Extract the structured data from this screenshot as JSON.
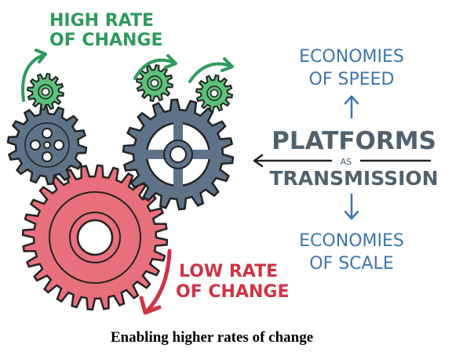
{
  "labels": {
    "high_rate_line1": "HIGH RATE",
    "high_rate_line2": "OF CHANGE",
    "low_rate_line1": "LOW RATE",
    "low_rate_line2": "OF CHANGE",
    "economies_speed_line1": "ECONOMIES",
    "economies_speed_line2": "OF SPEED",
    "platforms": "PLATFORMS",
    "as": "AS",
    "transmission": "TRANSMISSION",
    "economies_scale_line1": "ECONOMIES",
    "economies_scale_line2": "OF SCALE"
  },
  "caption": "Enabling higher rates of change",
  "colors": {
    "green": "#2e9a5c",
    "green_gear": "#5cc07a",
    "slate_gear": "#5f7388",
    "red_gear": "#e8707c",
    "red_text": "#cf3445",
    "blue_text": "#3f74b2",
    "slate_text": "#51606e",
    "outline": "#222222"
  }
}
